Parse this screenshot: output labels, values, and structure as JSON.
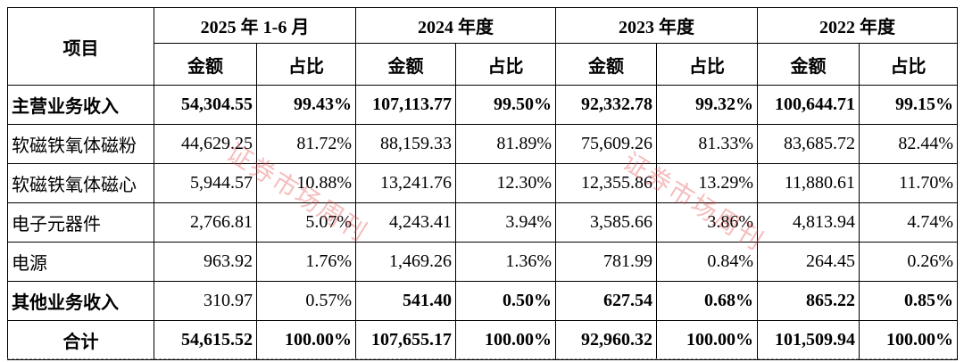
{
  "header": {
    "item": "项目",
    "periods": [
      "2025 年 1-6 月",
      "2024 年度",
      "2023 年度",
      "2022 年度"
    ],
    "subheaders": [
      "金额",
      "占比",
      "金额",
      "占比",
      "金额",
      "占比",
      "金额",
      "占比"
    ]
  },
  "table": {
    "rows": [
      {
        "label": "主营业务收入",
        "cells": [
          "54,304.55",
          "99.43%",
          "107,113.77",
          "99.50%",
          "92,332.78",
          "99.32%",
          "100,644.71",
          "99.15%"
        ],
        "bold": [
          true,
          true,
          true,
          true,
          true,
          true,
          true,
          true,
          true
        ],
        "centered": false
      },
      {
        "label": "软磁铁氧体磁粉",
        "cells": [
          "44,629.25",
          "81.72%",
          "88,159.33",
          "81.89%",
          "75,609.26",
          "81.33%",
          "83,685.72",
          "82.44%"
        ],
        "bold": [
          false,
          false,
          false,
          false,
          false,
          false,
          false,
          false,
          false
        ],
        "centered": false
      },
      {
        "label": "软磁铁氧体磁心",
        "cells": [
          "5,944.57",
          "10.88%",
          "13,241.76",
          "12.30%",
          "12,355.86",
          "13.29%",
          "11,880.61",
          "11.70%"
        ],
        "bold": [
          false,
          false,
          false,
          false,
          false,
          false,
          false,
          false,
          false
        ],
        "centered": false
      },
      {
        "label": "电子元器件",
        "cells": [
          "2,766.81",
          "5.07%",
          "4,243.41",
          "3.94%",
          "3,585.66",
          "3.86%",
          "4,813.94",
          "4.74%"
        ],
        "bold": [
          false,
          false,
          false,
          false,
          false,
          false,
          false,
          false,
          false
        ],
        "centered": false
      },
      {
        "label": "电源",
        "cells": [
          "963.92",
          "1.76%",
          "1,469.26",
          "1.36%",
          "781.99",
          "0.84%",
          "264.45",
          "0.26%"
        ],
        "bold": [
          false,
          false,
          false,
          false,
          false,
          false,
          false,
          false,
          false
        ],
        "centered": false
      },
      {
        "label": "其他业务收入",
        "cells": [
          "310.97",
          "0.57%",
          "541.40",
          "0.50%",
          "627.54",
          "0.68%",
          "865.22",
          "0.85%"
        ],
        "bold": [
          true,
          false,
          false,
          true,
          true,
          true,
          true,
          true,
          true
        ],
        "centered": false
      },
      {
        "label": "合计",
        "cells": [
          "54,615.52",
          "100.00%",
          "107,655.17",
          "100.00%",
          "92,960.32",
          "100.00%",
          "101,509.94",
          "100.00%"
        ],
        "bold": [
          true,
          true,
          true,
          true,
          true,
          true,
          true,
          true,
          true
        ],
        "centered": true
      }
    ]
  },
  "watermarks": [
    "证券市场周刊",
    "证券市场周刊"
  ]
}
